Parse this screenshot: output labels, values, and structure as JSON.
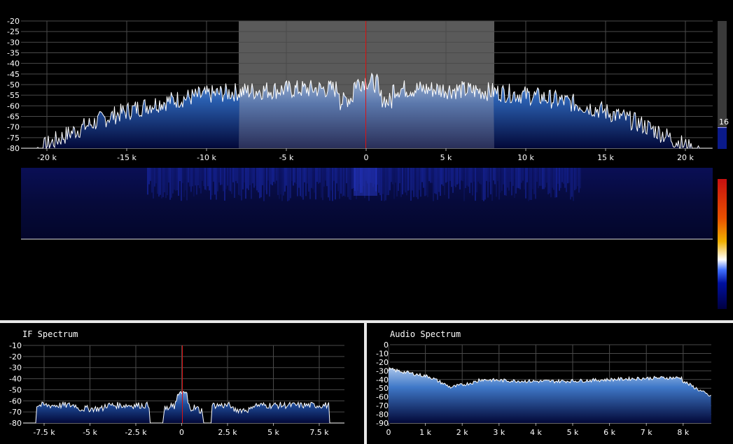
{
  "main_spectrum": {
    "y_ticks": [
      "-20",
      "-25",
      "-30",
      "-35",
      "-40",
      "-45",
      "-50",
      "-55",
      "-60",
      "-65",
      "-70",
      "-75",
      "-80"
    ],
    "x_ticks": [
      "-20 k",
      "-15 k",
      "-10 k",
      "-5 k",
      "0",
      "5 k",
      "10 k",
      "15 k",
      "20 k"
    ],
    "gain_value": "16",
    "colors": {
      "fill_top": "#5c82c0",
      "fill_bottom": "#020a3a",
      "line": "#ffffff",
      "center": "#dd1111",
      "passband": "#5a5a5a",
      "grid": "#555555"
    }
  },
  "waterfall": {
    "colorbar": [
      "#c81010",
      "#e85000",
      "#f0b000",
      "#ffffff",
      "#4070ff",
      "#0010a0",
      "#000040"
    ]
  },
  "if_spectrum": {
    "title": "IF Spectrum",
    "y_ticks": [
      "-10",
      "-20",
      "-30",
      "-40",
      "-50",
      "-60",
      "-70",
      "-80"
    ],
    "x_ticks": [
      "-7.5 k",
      "-5 k",
      "-2.5 k",
      "0",
      "2.5 k",
      "5 k",
      "7.5 k"
    ]
  },
  "audio_spectrum": {
    "title": "Audio Spectrum",
    "y_ticks": [
      "0",
      "-10",
      "-20",
      "-30",
      "-40",
      "-50",
      "-60",
      "-70",
      "-80",
      "-90"
    ],
    "x_ticks": [
      "0",
      "1 k",
      "2 k",
      "3 k",
      "4 k",
      "5 k",
      "6 k",
      "7 k",
      "8 k"
    ]
  }
}
